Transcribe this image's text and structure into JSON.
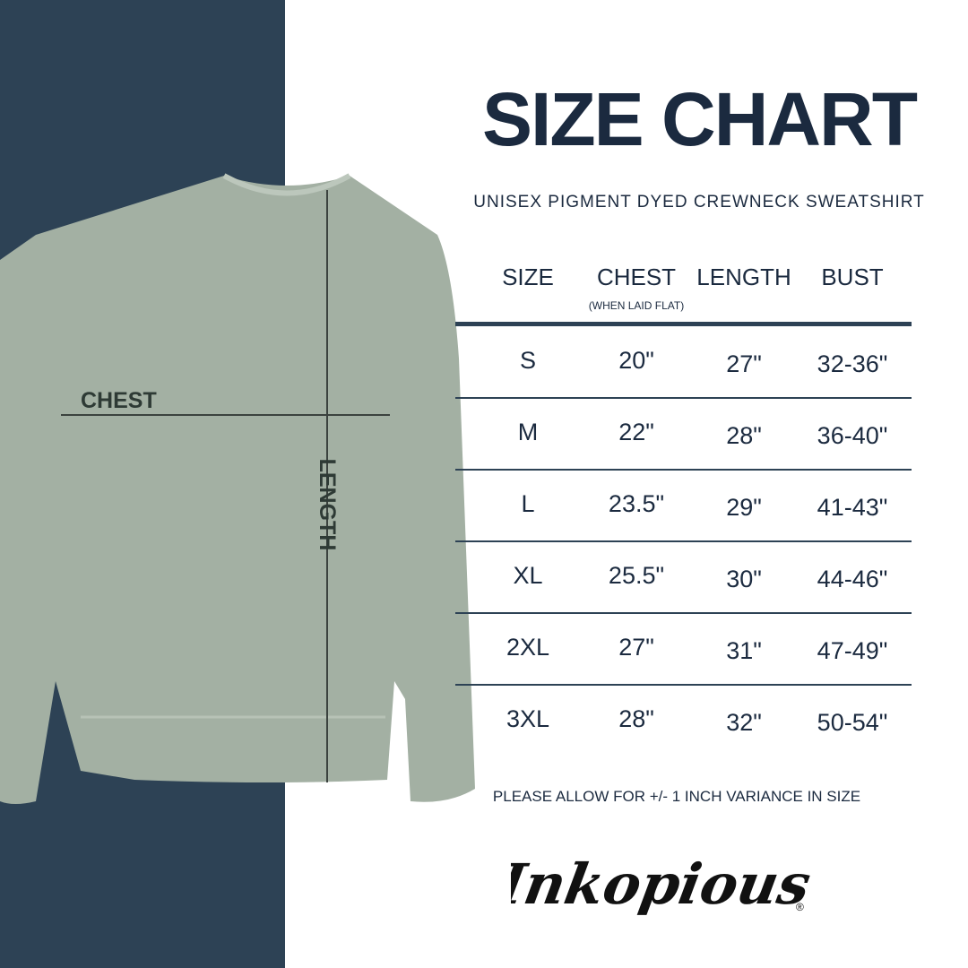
{
  "title": "SIZE CHART",
  "subtitle": "UNISEX PIGMENT DYED CREWNECK SWEATSHIRT",
  "colors": {
    "navy_panel": "#2d4255",
    "text": "#1b2a3f",
    "garment": "#a3b0a3"
  },
  "diagram": {
    "chest_label": "CHEST",
    "length_label": "LENGTH"
  },
  "table": {
    "headers": [
      "SIZE",
      "CHEST",
      "LENGTH",
      "BUST"
    ],
    "chest_note": "(WHEN LAID FLAT)",
    "rows": [
      [
        "S",
        "20\"",
        "27\"",
        "32-36\""
      ],
      [
        "M",
        "22\"",
        "28\"",
        "36-40\""
      ],
      [
        "L",
        "23.5\"",
        "29\"",
        "41-43\""
      ],
      [
        "XL",
        "25.5\"",
        "30\"",
        "44-46\""
      ],
      [
        "2XL",
        "27\"",
        "31\"",
        "47-49\""
      ],
      [
        "3XL",
        "28\"",
        "32\"",
        "50-54\""
      ]
    ]
  },
  "variance_note": "PLEASE ALLOW FOR +/- 1 INCH VARIANCE IN SIZE",
  "logo": {
    "text": "Inkopious",
    "mark": "®"
  }
}
